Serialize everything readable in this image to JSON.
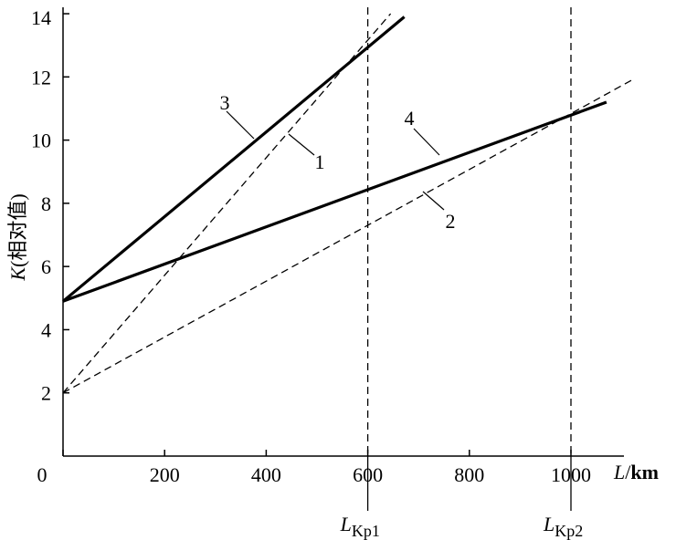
{
  "chart_data": {
    "type": "line",
    "title": "",
    "xlabel": {
      "var": "L",
      "unit": "km"
    },
    "ylabel": {
      "var": "K",
      "note": "(相对值)"
    },
    "xlim": [
      0,
      1100
    ],
    "ylim": [
      0,
      14
    ],
    "x_ticks": [
      0,
      200,
      400,
      600,
      800,
      1000
    ],
    "y_ticks": [
      2,
      4,
      6,
      8,
      10,
      12,
      14
    ],
    "grid": false,
    "series": [
      {
        "name": "1",
        "style": "dashed",
        "x": [
          0,
          645
        ],
        "y": [
          2,
          14
        ]
      },
      {
        "name": "2",
        "style": "dashed",
        "x": [
          0,
          1120
        ],
        "y": [
          2,
          11.9
        ]
      },
      {
        "name": "3",
        "style": "solid",
        "x": [
          0,
          672
        ],
        "y": [
          4.9,
          13.9
        ]
      },
      {
        "name": "4",
        "style": "solid",
        "x": [
          0,
          1070
        ],
        "y": [
          4.9,
          11.2
        ]
      }
    ],
    "vertical_lines": [
      {
        "x": 600,
        "label_main": "L",
        "label_sub": "Kp1"
      },
      {
        "x": 1000,
        "label_main": "L",
        "label_sub": "Kp2"
      }
    ]
  }
}
